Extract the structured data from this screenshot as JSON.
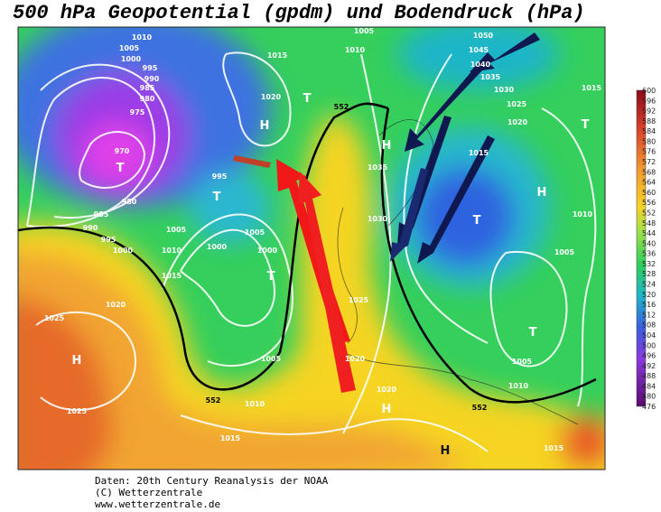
{
  "title": "500 hPa Geopotential (gpdm) und Bodendruck (hPa)",
  "footer": [
    "Daten: 20th Century Reanalysis der NOAA",
    "(C) Wetterzentrale",
    "www.wetterzentrale.de"
  ],
  "colorbar": {
    "ticks": [
      600,
      596,
      592,
      588,
      584,
      580,
      576,
      572,
      568,
      564,
      560,
      556,
      552,
      548,
      544,
      540,
      536,
      532,
      528,
      524,
      520,
      516,
      512,
      508,
      504,
      500,
      496,
      492,
      488,
      484,
      480,
      476
    ]
  },
  "isobar_labels": [
    1010,
    1005,
    1000,
    995,
    990,
    985,
    980,
    975,
    970,
    995,
    980,
    985,
    990,
    995,
    1000,
    1005,
    1000,
    1010,
    1015,
    1020,
    1025,
    1025,
    1005,
    1000,
    1005,
    1010,
    1015,
    1015,
    1020,
    1010,
    1005,
    1035,
    1030,
    1025,
    1020,
    1020,
    1050,
    1045,
    1040,
    1035,
    1030,
    1025,
    1020,
    1015,
    1015,
    1010,
    1005,
    1005,
    1010,
    1015
  ],
  "geopotential_labels": [
    552,
    552,
    552
  ],
  "centers": [
    "T",
    "T",
    "T",
    "H",
    "T",
    "H",
    "H",
    "H",
    "T",
    "H",
    "T",
    "T",
    "H"
  ]
}
